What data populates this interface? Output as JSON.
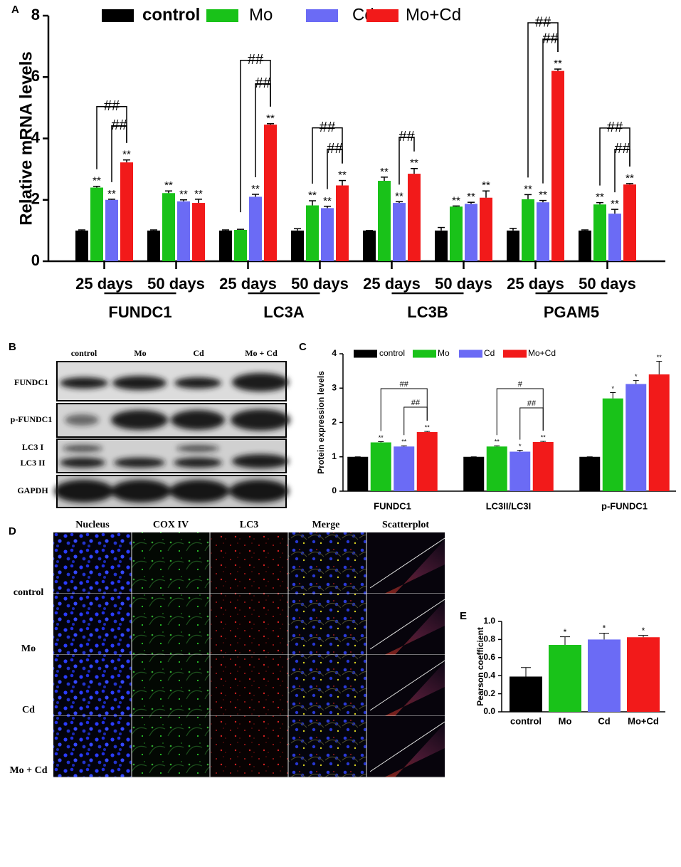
{
  "panel_labels": [
    "A",
    "B",
    "C",
    "D",
    "E"
  ],
  "chart_data": [
    {
      "type": "bar",
      "ylabel": "Relative mRNA levels",
      "categories": [
        "25 days",
        "50 days",
        "25 days",
        "50 days",
        "25 days",
        "50 days",
        "25 days",
        "50 days"
      ],
      "groups": [
        "FUNDC1",
        "LC3A",
        "LC3B",
        "PGAM5"
      ],
      "series": [
        {
          "name": "control",
          "color": "#000000",
          "values": [
            1,
            1,
            1,
            1,
            1,
            1,
            1,
            1
          ],
          "errors": [
            0.02,
            0.02,
            0.02,
            0.06,
            0,
            0.1,
            0.07,
            0.02
          ],
          "significance": [
            null,
            null,
            null,
            null,
            null,
            null,
            null,
            null
          ]
        },
        {
          "name": "Mo",
          "color": "#19c219",
          "values": [
            2.4,
            2.22,
            1.02,
            1.82,
            2.62,
            1.78,
            2.02,
            1.85
          ],
          "errors": [
            0.04,
            0.07,
            0.02,
            0.15,
            0.12,
            0.02,
            0.15,
            0.06
          ],
          "significance": [
            "**",
            "**",
            null,
            "**",
            "**",
            "**",
            "**",
            "**"
          ]
        },
        {
          "name": "Cd",
          "color": "#6b6bf5",
          "values": [
            2.0,
            1.95,
            2.1,
            1.73,
            1.9,
            1.87,
            1.92,
            1.55
          ],
          "errors": [
            0.02,
            0.05,
            0.08,
            0.06,
            0.04,
            0.05,
            0.06,
            0.14
          ],
          "significance": [
            "**",
            "**",
            "**",
            "**",
            "**",
            "**",
            "**",
            "**"
          ]
        },
        {
          "name": "Mo+Cd",
          "color": "#f21a1a",
          "values": [
            3.22,
            1.9,
            4.45,
            2.47,
            2.85,
            2.07,
            6.2,
            2.5
          ],
          "errors": [
            0.08,
            0.12,
            0.03,
            0.16,
            0.17,
            0.22,
            0.06,
            0.03
          ],
          "significance": [
            "**",
            "**",
            "**",
            "**",
            "**",
            "**",
            "**",
            "**"
          ]
        }
      ],
      "comparisons": [
        "##",
        "##",
        "##",
        "##",
        "##",
        "##",
        "##",
        "##",
        "##",
        "##",
        "##"
      ],
      "ylim": [
        0,
        8
      ],
      "yticks": [
        0,
        2,
        4,
        6,
        8
      ]
    },
    {
      "type": "bar",
      "ylabel": "Protein expression levels",
      "categories": [
        "FUNDC1",
        "LC3II/LC3I",
        "p-FUNDC1"
      ],
      "series": [
        {
          "name": "control",
          "color": "#000000",
          "values": [
            1,
            1,
            1
          ],
          "errors": [
            0,
            0,
            0
          ],
          "significance": [
            null,
            null,
            null
          ]
        },
        {
          "name": "Mo",
          "color": "#19c219",
          "values": [
            1.42,
            1.3,
            2.7
          ],
          "errors": [
            0.02,
            0.02,
            0.17
          ],
          "significance": [
            "**",
            "**",
            "*"
          ]
        },
        {
          "name": "Cd",
          "color": "#6b6bf5",
          "values": [
            1.3,
            1.15,
            3.12
          ],
          "errors": [
            0.02,
            0.04,
            0.1
          ],
          "significance": [
            "**",
            "*",
            "*"
          ]
        },
        {
          "name": "Mo+Cd",
          "color": "#f21a1a",
          "values": [
            1.72,
            1.43,
            3.4
          ],
          "errors": [
            0.02,
            0.02,
            0.38
          ],
          "significance": [
            "**",
            "**",
            "**"
          ]
        }
      ],
      "comparisons": [
        "##",
        "##",
        "#",
        "##"
      ],
      "ylim": [
        0,
        4
      ],
      "yticks": [
        0,
        1,
        2,
        3,
        4
      ]
    },
    {
      "type": "bar",
      "ylabel": "Pearson coefficient",
      "categories": [
        "control",
        "Mo",
        "Cd",
        "Mo+Cd"
      ],
      "values": [
        0.39,
        0.74,
        0.8,
        0.825
      ],
      "errors": [
        0.1,
        0.09,
        0.07,
        0.02
      ],
      "colors": [
        "#000000",
        "#19c219",
        "#6b6bf5",
        "#f21a1a"
      ],
      "significance": [
        null,
        "*",
        "*",
        "*"
      ],
      "ylim": [
        0,
        1
      ],
      "yticks": [
        {
          "value": 0,
          "label": "0.0"
        },
        0.2,
        0.4,
        0.6,
        0.8,
        {
          "value": 1,
          "label": "1.0"
        }
      ]
    }
  ],
  "blot": {
    "columns": [
      "control",
      "Mo",
      "Cd",
      "Mo + Cd"
    ],
    "rows": [
      "FUNDC1",
      "p-FUNDC1",
      "LC3 I",
      "LC3 II",
      "GAPDH"
    ]
  },
  "microscopy": {
    "columns": [
      "Nucleus",
      "COX IV",
      "LC3",
      "Merge",
      "Scatterplot"
    ],
    "rows": [
      "control",
      "Mo",
      "Cd",
      "Mo + Cd"
    ]
  }
}
